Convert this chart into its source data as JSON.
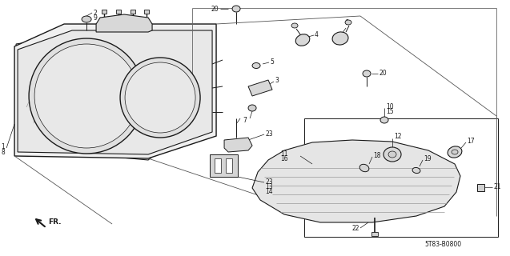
{
  "bg_color": "#ffffff",
  "line_color": "#1a1a1a",
  "text_color": "#1a1a1a",
  "diagram_code": "5T83-B0800",
  "figsize": [
    6.37,
    3.2
  ],
  "dpi": 100
}
